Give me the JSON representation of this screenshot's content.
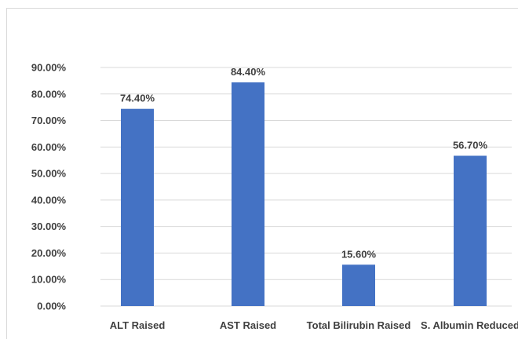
{
  "chart_data": {
    "type": "bar",
    "categories": [
      "ALT Raised",
      "AST Raised",
      "Total Bilirubin Raised",
      "S. Albumin Reduced"
    ],
    "values": [
      74.4,
      84.4,
      15.6,
      56.7
    ],
    "data_labels": [
      "74.40%",
      "84.40%",
      "15.60%",
      "56.70%"
    ],
    "y_ticks": [
      "0.00%",
      "10.00%",
      "20.00%",
      "30.00%",
      "40.00%",
      "50.00%",
      "60.00%",
      "70.00%",
      "80.00%",
      "90.00%"
    ],
    "ylim": [
      0,
      90
    ],
    "grid": true,
    "legend": "none",
    "bar_color": "#4472c4",
    "grid_color": "#d9d9d9"
  }
}
